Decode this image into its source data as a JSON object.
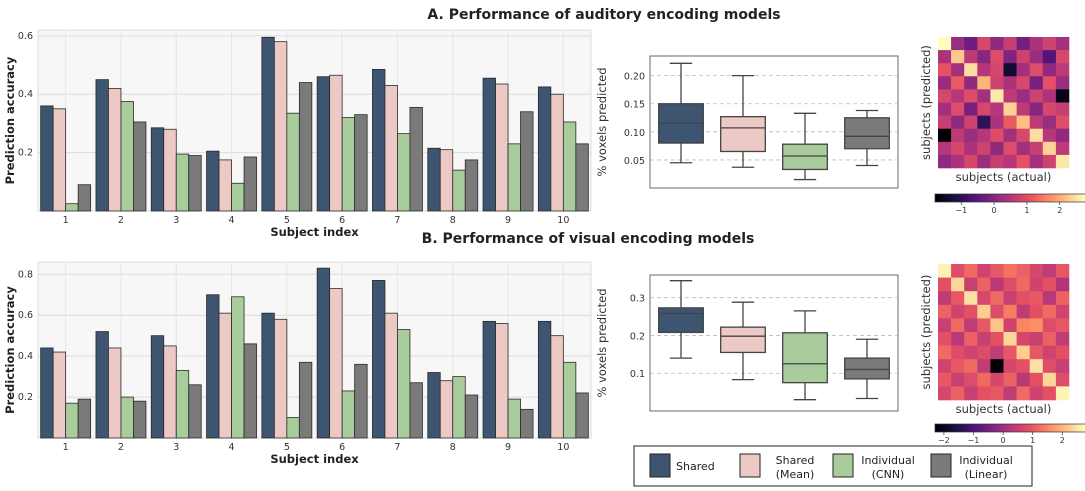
{
  "colors": {
    "shared": "#3d5570",
    "shared_mean": "#ecc9c4",
    "individual_cnn": "#a9cc9d",
    "individual_linear": "#7a7a7a"
  },
  "legend": {
    "items": [
      {
        "key": "shared",
        "line1": "Shared",
        "line2": ""
      },
      {
        "key": "shared_mean",
        "line1": "Shared",
        "line2": "(Mean)"
      },
      {
        "key": "individual_cnn",
        "line1": "Individual",
        "line2": "(CNN)"
      },
      {
        "key": "individual_linear",
        "line1": "Individual",
        "line2": "(Linear)"
      }
    ]
  },
  "chart_data": [
    {
      "id": "auditory-bars",
      "type": "bar",
      "title": "A. Performance of auditory encoding models",
      "xlabel": "Subject index",
      "ylabel": "Prediction accuracy",
      "ylim": [
        0,
        0.62
      ],
      "yticks": [
        0.2,
        0.4,
        0.6
      ],
      "ytick_labels": [
        "0.2",
        "0.4",
        "0.6"
      ],
      "grid": true,
      "categories": [
        "1",
        "2",
        "3",
        "4",
        "5",
        "6",
        "7",
        "8",
        "9",
        "10"
      ],
      "series": [
        {
          "name": "Shared",
          "key": "shared",
          "values": [
            0.36,
            0.45,
            0.285,
            0.205,
            0.595,
            0.46,
            0.485,
            0.215,
            0.455,
            0.425
          ]
        },
        {
          "name": "Shared (Mean)",
          "key": "shared_mean",
          "values": [
            0.35,
            0.42,
            0.28,
            0.175,
            0.58,
            0.465,
            0.43,
            0.21,
            0.435,
            0.4
          ]
        },
        {
          "name": "Individual (CNN)",
          "key": "individual_cnn",
          "values": [
            0.025,
            0.375,
            0.195,
            0.095,
            0.335,
            0.32,
            0.265,
            0.14,
            0.23,
            0.305
          ]
        },
        {
          "name": "Individual (Linear)",
          "key": "individual_linear",
          "values": [
            0.09,
            0.305,
            0.19,
            0.185,
            0.44,
            0.33,
            0.355,
            0.175,
            0.34,
            0.23
          ]
        }
      ]
    },
    {
      "id": "auditory-box",
      "type": "box",
      "ylabel": "% voxels predicted",
      "ylim": [
        0.0,
        0.235
      ],
      "yticks": [
        0.05,
        0.1,
        0.15,
        0.2
      ],
      "ytick_labels": [
        "0.05",
        "0.10",
        "0.15",
        "0.20"
      ],
      "boxes": [
        {
          "key": "shared",
          "min": 0.045,
          "q1": 0.08,
          "median": 0.115,
          "q3": 0.15,
          "max": 0.222
        },
        {
          "key": "shared_mean",
          "min": 0.037,
          "q1": 0.065,
          "median": 0.107,
          "q3": 0.127,
          "max": 0.2
        },
        {
          "key": "individual_cnn",
          "min": 0.015,
          "q1": 0.033,
          "median": 0.057,
          "q3": 0.078,
          "max": 0.133
        },
        {
          "key": "individual_linear",
          "min": 0.04,
          "q1": 0.07,
          "median": 0.092,
          "q3": 0.125,
          "max": 0.138
        }
      ]
    },
    {
      "id": "auditory-heatmap",
      "type": "heatmap",
      "xlabel": "subjects (actual)",
      "ylabel": "subjects (predicted)",
      "colorbar_ticks": [
        -1,
        0,
        1,
        2
      ],
      "colorbar_range": [
        -1.8,
        2.8
      ],
      "matrix": [
        [
          2.8,
          0.2,
          -0.3,
          0.9,
          0.1,
          0.7,
          -0.2,
          0.4,
          0.8,
          0.3
        ],
        [
          0.4,
          2.3,
          0.6,
          0.0,
          1.0,
          -0.1,
          0.8,
          0.2,
          -0.6,
          0.9
        ],
        [
          1.1,
          0.3,
          2.5,
          0.5,
          0.9,
          -1.4,
          0.3,
          1.0,
          0.1,
          0.6
        ],
        [
          0.2,
          1.2,
          0.1,
          2.1,
          0.8,
          0.4,
          0.9,
          -0.2,
          1.1,
          0.2
        ],
        [
          0.9,
          0.5,
          1.0,
          0.3,
          2.6,
          0.6,
          0.2,
          0.8,
          0.4,
          -1.6
        ],
        [
          0.3,
          1.0,
          -0.2,
          0.9,
          0.5,
          2.4,
          0.6,
          0.0,
          0.9,
          0.7
        ],
        [
          0.7,
          0.1,
          0.8,
          -1.0,
          0.4,
          1.2,
          2.2,
          0.6,
          0.2,
          1.0
        ],
        [
          -1.8,
          0.6,
          0.2,
          0.5,
          1.0,
          0.3,
          0.9,
          2.5,
          0.5,
          0.1
        ],
        [
          0.5,
          0.9,
          0.4,
          0.8,
          0.1,
          1.0,
          0.3,
          0.7,
          2.4,
          0.6
        ],
        [
          0.1,
          0.4,
          0.9,
          0.2,
          0.7,
          0.5,
          1.1,
          0.3,
          0.8,
          2.6
        ]
      ]
    },
    {
      "id": "visual-bars",
      "type": "bar",
      "title": "B. Performance of visual encoding models",
      "xlabel": "Subject index",
      "ylabel": "Prediction accuracy",
      "ylim": [
        0,
        0.86
      ],
      "yticks": [
        0.2,
        0.4,
        0.6,
        0.8
      ],
      "ytick_labels": [
        "0.2",
        "0.4",
        "0.6",
        "0.8"
      ],
      "grid": true,
      "categories": [
        "1",
        "2",
        "3",
        "4",
        "5",
        "6",
        "7",
        "8",
        "9",
        "10"
      ],
      "series": [
        {
          "name": "Shared",
          "key": "shared",
          "values": [
            0.44,
            0.52,
            0.5,
            0.7,
            0.61,
            0.83,
            0.77,
            0.32,
            0.57,
            0.57
          ]
        },
        {
          "name": "Shared (Mean)",
          "key": "shared_mean",
          "values": [
            0.42,
            0.44,
            0.45,
            0.61,
            0.58,
            0.73,
            0.61,
            0.28,
            0.56,
            0.5
          ]
        },
        {
          "name": "Individual (CNN)",
          "key": "individual_cnn",
          "values": [
            0.17,
            0.2,
            0.33,
            0.69,
            0.1,
            0.23,
            0.53,
            0.3,
            0.19,
            0.37
          ]
        },
        {
          "name": "Individual (Linear)",
          "key": "individual_linear",
          "values": [
            0.19,
            0.18,
            0.26,
            0.46,
            0.37,
            0.36,
            0.27,
            0.21,
            0.14,
            0.22
          ]
        }
      ]
    },
    {
      "id": "visual-box",
      "type": "box",
      "ylabel": "% voxels predicted",
      "ylim": [
        0.0,
        0.36
      ],
      "yticks": [
        0.1,
        0.2,
        0.3
      ],
      "ytick_labels": [
        "0.1",
        "0.2",
        "0.3"
      ],
      "boxes": [
        {
          "key": "shared",
          "min": 0.14,
          "q1": 0.208,
          "median": 0.258,
          "q3": 0.273,
          "max": 0.345
        },
        {
          "key": "shared_mean",
          "min": 0.083,
          "q1": 0.155,
          "median": 0.198,
          "q3": 0.222,
          "max": 0.288
        },
        {
          "key": "individual_cnn",
          "min": 0.03,
          "q1": 0.075,
          "median": 0.125,
          "q3": 0.207,
          "max": 0.265
        },
        {
          "key": "individual_linear",
          "min": 0.033,
          "q1": 0.085,
          "median": 0.11,
          "q3": 0.14,
          "max": 0.19
        }
      ]
    },
    {
      "id": "visual-heatmap",
      "type": "heatmap",
      "xlabel": "subjects (actual)",
      "ylabel": "subjects (predicted)",
      "colorbar_ticks": [
        -2,
        -1,
        0,
        1,
        2
      ],
      "colorbar_range": [
        -2.3,
        2.8
      ],
      "matrix": [
        [
          2.7,
          0.8,
          1.2,
          0.6,
          1.0,
          1.3,
          1.1,
          0.7,
          0.4,
          1.0
        ],
        [
          0.9,
          2.4,
          0.5,
          1.1,
          0.3,
          0.8,
          1.2,
          0.6,
          0.9,
          0.2
        ],
        [
          0.4,
          1.0,
          2.5,
          0.7,
          1.2,
          0.5,
          0.9,
          1.0,
          0.3,
          1.1
        ],
        [
          1.1,
          0.6,
          0.9,
          2.3,
          0.8,
          1.4,
          0.4,
          0.9,
          1.2,
          0.6
        ],
        [
          0.5,
          1.2,
          0.4,
          1.0,
          2.2,
          0.6,
          1.5,
          1.6,
          0.8,
          1.0
        ],
        [
          0.9,
          0.3,
          1.1,
          0.5,
          0.9,
          2.4,
          0.7,
          0.5,
          1.1,
          0.4
        ],
        [
          1.2,
          0.8,
          0.6,
          0.8,
          0.4,
          1.0,
          2.3,
          1.0,
          0.6,
          0.9
        ],
        [
          0.6,
          1.0,
          1.2,
          0.4,
          -2.3,
          0.7,
          0.9,
          2.5,
          0.8,
          0.5
        ],
        [
          1.0,
          0.5,
          0.8,
          1.2,
          0.7,
          1.1,
          0.3,
          0.9,
          2.4,
          0.8
        ],
        [
          0.7,
          1.1,
          0.5,
          0.9,
          1.0,
          0.4,
          1.2,
          0.6,
          0.9,
          2.7
        ]
      ]
    }
  ]
}
